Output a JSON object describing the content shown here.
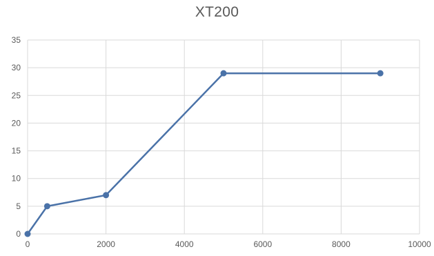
{
  "chart_data": {
    "type": "scatter",
    "title": "XT200",
    "xlabel": "",
    "ylabel": "",
    "xlim": [
      0,
      10000
    ],
    "ylim": [
      0,
      35
    ],
    "x_ticks": [
      0,
      2000,
      4000,
      6000,
      8000,
      10000
    ],
    "y_ticks": [
      0,
      5,
      10,
      15,
      20,
      25,
      30,
      35
    ],
    "grid": true,
    "legend": "none",
    "series": [
      {
        "x": [
          0,
          500,
          2000,
          5000,
          9000
        ],
        "y": [
          0,
          5,
          7,
          29,
          29
        ],
        "color": "#4a72a8",
        "line": true,
        "markers": true
      }
    ]
  }
}
